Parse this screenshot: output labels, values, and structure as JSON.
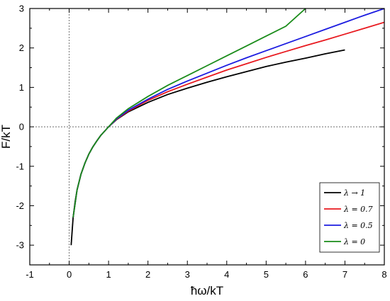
{
  "chart_data": {
    "type": "line",
    "xlabel": "ħω/kT",
    "ylabel": "F/kT",
    "xlim": [
      -1,
      8
    ],
    "ylim": [
      -3.5,
      3
    ],
    "xticks": [
      "-1",
      "0",
      "1",
      "2",
      "3",
      "4",
      "5",
      "6",
      "7",
      "8"
    ],
    "yticks": [
      "-3",
      "-2",
      "-1",
      "0",
      "1",
      "2",
      "3"
    ],
    "reference_lines": {
      "x": 0,
      "y": 0,
      "style": "dotted"
    },
    "legend_position": "bottom-right",
    "series": [
      {
        "name": "λ → 1",
        "color": "#000000",
        "points": [
          [
            0.05,
            -3.0
          ],
          [
            0.1,
            -2.3
          ],
          [
            0.15,
            -1.9
          ],
          [
            0.2,
            -1.6
          ],
          [
            0.3,
            -1.2
          ],
          [
            0.4,
            -0.92
          ],
          [
            0.5,
            -0.69
          ],
          [
            0.6,
            -0.51
          ],
          [
            0.7,
            -0.36
          ],
          [
            0.8,
            -0.22
          ],
          [
            0.9,
            -0.11
          ],
          [
            1.0,
            0.0
          ],
          [
            1.2,
            0.18
          ],
          [
            1.5,
            0.38
          ],
          [
            2.0,
            0.62
          ],
          [
            2.5,
            0.82
          ],
          [
            3.0,
            0.98
          ],
          [
            3.5,
            1.13
          ],
          [
            4.0,
            1.27
          ],
          [
            4.5,
            1.4
          ],
          [
            5.0,
            1.53
          ],
          [
            5.5,
            1.64
          ],
          [
            6.0,
            1.74
          ],
          [
            6.5,
            1.85
          ],
          [
            7.0,
            1.95
          ]
        ]
      },
      {
        "name": "λ = 0.7",
        "color": "#e8191f",
        "points": [
          [
            0.1,
            -2.3
          ],
          [
            0.2,
            -1.6
          ],
          [
            0.3,
            -1.2
          ],
          [
            0.4,
            -0.92
          ],
          [
            0.5,
            -0.69
          ],
          [
            0.6,
            -0.51
          ],
          [
            0.7,
            -0.36
          ],
          [
            0.8,
            -0.22
          ],
          [
            0.9,
            -0.11
          ],
          [
            1.0,
            0.0
          ],
          [
            1.2,
            0.19
          ],
          [
            1.5,
            0.4
          ],
          [
            2.0,
            0.67
          ],
          [
            2.5,
            0.89
          ],
          [
            3.0,
            1.08
          ],
          [
            3.5,
            1.26
          ],
          [
            4.0,
            1.44
          ],
          [
            4.5,
            1.6
          ],
          [
            5.0,
            1.76
          ],
          [
            5.5,
            1.91
          ],
          [
            6.0,
            2.06
          ],
          [
            6.5,
            2.2
          ],
          [
            7.0,
            2.35
          ],
          [
            7.5,
            2.5
          ],
          [
            8.0,
            2.65
          ]
        ]
      },
      {
        "name": "λ =  0.5",
        "color": "#1c1ce0",
        "points": [
          [
            0.1,
            -2.3
          ],
          [
            0.2,
            -1.6
          ],
          [
            0.3,
            -1.2
          ],
          [
            0.4,
            -0.92
          ],
          [
            0.5,
            -0.69
          ],
          [
            0.6,
            -0.51
          ],
          [
            0.7,
            -0.36
          ],
          [
            0.8,
            -0.22
          ],
          [
            0.9,
            -0.11
          ],
          [
            1.0,
            0.0
          ],
          [
            1.2,
            0.2
          ],
          [
            1.5,
            0.42
          ],
          [
            2.0,
            0.7
          ],
          [
            2.5,
            0.95
          ],
          [
            3.0,
            1.16
          ],
          [
            3.5,
            1.36
          ],
          [
            4.0,
            1.56
          ],
          [
            4.5,
            1.75
          ],
          [
            5.0,
            1.93
          ],
          [
            5.5,
            2.11
          ],
          [
            6.0,
            2.29
          ],
          [
            6.5,
            2.47
          ],
          [
            7.0,
            2.65
          ],
          [
            7.5,
            2.83
          ],
          [
            8.0,
            3.0
          ]
        ]
      },
      {
        "name": "λ = 0",
        "color": "#1a8c1a",
        "points": [
          [
            0.1,
            -2.3
          ],
          [
            0.2,
            -1.6
          ],
          [
            0.3,
            -1.2
          ],
          [
            0.4,
            -0.92
          ],
          [
            0.5,
            -0.69
          ],
          [
            0.6,
            -0.51
          ],
          [
            0.7,
            -0.36
          ],
          [
            0.8,
            -0.22
          ],
          [
            0.9,
            -0.11
          ],
          [
            1.0,
            0.0
          ],
          [
            1.2,
            0.22
          ],
          [
            1.5,
            0.46
          ],
          [
            2.0,
            0.77
          ],
          [
            2.5,
            1.05
          ],
          [
            3.0,
            1.3
          ],
          [
            3.5,
            1.55
          ],
          [
            4.0,
            1.8
          ],
          [
            4.5,
            2.05
          ],
          [
            5.0,
            2.3
          ],
          [
            5.5,
            2.55
          ],
          [
            6.0,
            3.0
          ]
        ]
      }
    ]
  }
}
